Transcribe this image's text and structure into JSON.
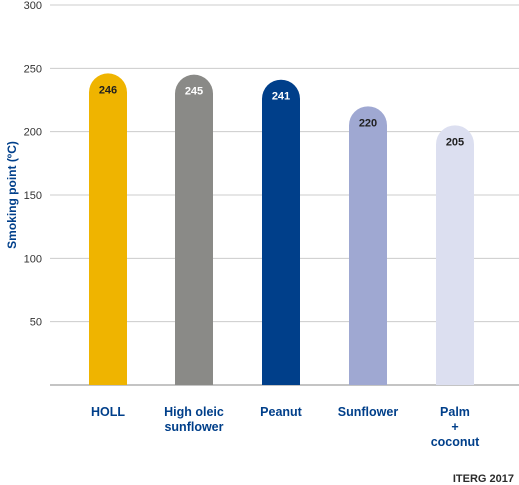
{
  "chart_data": {
    "type": "bar",
    "ylabel": "Smoking point (ºC)",
    "xlabel": "",
    "ylim": [
      0,
      300
    ],
    "yticks": [
      "50",
      "100",
      "150",
      "200",
      "250",
      "300"
    ],
    "grid": true,
    "legend": "none",
    "categories": [
      {
        "lines": [
          "HOLL"
        ],
        "color": "#efb400",
        "value_text_color": "#1f1f1f"
      },
      {
        "lines": [
          "High oleic",
          "sunflower"
        ],
        "color": "#8a8a87",
        "value_text_color": "#ffffff"
      },
      {
        "lines": [
          "Peanut"
        ],
        "color": "#003f8a",
        "value_text_color": "#ffffff"
      },
      {
        "lines": [
          "Sunflower"
        ],
        "color": "#9fa8d2",
        "value_text_color": "#1f1f1f"
      },
      {
        "lines": [
          "Palm",
          "+",
          "coconut"
        ],
        "color": "#dcdff0",
        "value_text_color": "#1f1f1f"
      }
    ],
    "values": [
      246,
      245,
      241,
      220,
      205
    ],
    "value_labels": [
      "246",
      "245",
      "241",
      "220",
      "205"
    ],
    "source": "ITERG 2017"
  },
  "colors": {
    "axis_title": "#003f8a",
    "category_label": "#003f8a",
    "grid": "#cccccc",
    "axis": "#888888"
  }
}
